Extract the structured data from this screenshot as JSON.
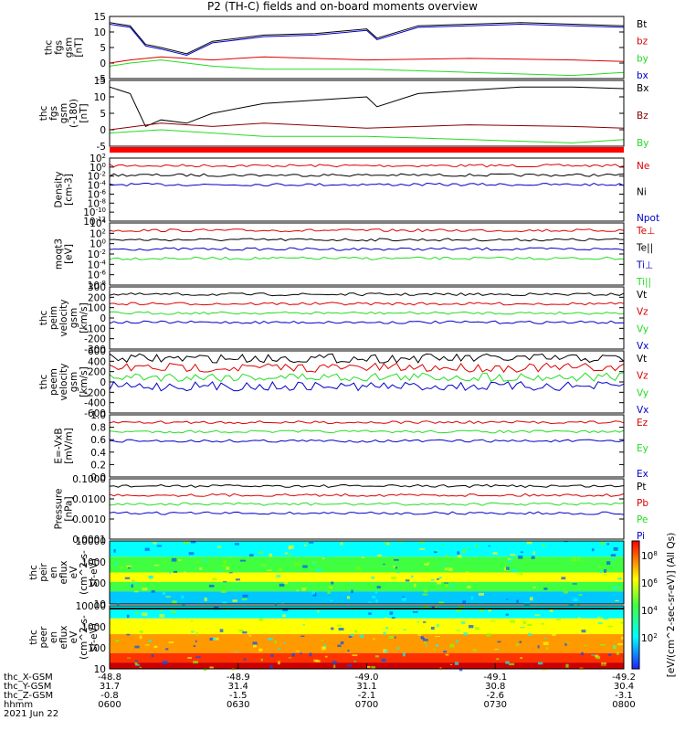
{
  "title": "P2 (TH-C) fields and on-board moments overview",
  "colorbar_label": "[eV/(cm^2-sec-sr-eV)] (All Qs)",
  "colorbar_ticks": [
    "10^8",
    "10^6",
    "10^4",
    "10^2"
  ],
  "colors": {
    "black": "#000000",
    "red": "#dd0000",
    "green": "#22dd22",
    "blue": "#0000cc",
    "darkred": "#880000"
  },
  "chart_data": [
    {
      "type": "line",
      "panel": "fgs_gsm",
      "ylabel": [
        "thc",
        "fgs",
        "gsm",
        "[nT]"
      ],
      "ylim": [
        -5,
        15
      ],
      "ticks": [
        "15",
        "10",
        "5",
        "0",
        "-5"
      ],
      "series": [
        {
          "name": "Bt",
          "color": "#000000",
          "x": [
            0,
            0.04,
            0.07,
            0.1,
            0.15,
            0.2,
            0.3,
            0.4,
            0.5,
            0.52,
            0.6,
            0.7,
            0.8,
            0.9,
            1
          ],
          "values": [
            13,
            12,
            6,
            5,
            3,
            7,
            9,
            9.5,
            11,
            8,
            12,
            12.5,
            13,
            12.5,
            12
          ]
        },
        {
          "name": "bz",
          "color": "#dd0000",
          "x": [
            0,
            0.04,
            0.1,
            0.2,
            0.3,
            0.5,
            0.7,
            0.9,
            1
          ],
          "values": [
            0,
            1,
            2,
            1,
            2,
            1,
            1.5,
            1,
            0.5
          ]
        },
        {
          "name": "by",
          "color": "#22dd22",
          "x": [
            0,
            0.04,
            0.1,
            0.2,
            0.3,
            0.5,
            0.7,
            0.9,
            1
          ],
          "values": [
            -1,
            0,
            1,
            -1,
            -2,
            -2,
            -3,
            -4,
            -3
          ]
        },
        {
          "name": "bx",
          "color": "#0000cc",
          "x": [
            0,
            0.04,
            0.07,
            0.1,
            0.15,
            0.2,
            0.3,
            0.4,
            0.5,
            0.52,
            0.6,
            0.7,
            0.8,
            0.9,
            1
          ],
          "values": [
            12.5,
            11.5,
            5.5,
            4.5,
            2.5,
            6.5,
            8.5,
            9,
            10.5,
            7.5,
            11.5,
            12,
            12.5,
            12,
            11.5
          ]
        }
      ]
    },
    {
      "type": "line",
      "panel": "fgs_gsm_deg",
      "ylabel": [
        "thc",
        "fgs",
        "gsm",
        "(-180)",
        "[nT]"
      ],
      "ylim": [
        -5,
        15
      ],
      "ticks": [
        "15",
        "10",
        "5",
        "0",
        "-5"
      ],
      "series": [
        {
          "name": "Bx",
          "color": "#000000",
          "x": [
            0,
            0.04,
            0.07,
            0.1,
            0.15,
            0.2,
            0.3,
            0.4,
            0.5,
            0.52,
            0.6,
            0.7,
            0.8,
            0.9,
            1
          ],
          "values": [
            13,
            11,
            1,
            3,
            2,
            5,
            8,
            9,
            10,
            7,
            11,
            12,
            13,
            13,
            12.5
          ]
        },
        {
          "name": "Bz",
          "color": "#880000",
          "x": [
            0,
            0.1,
            0.2,
            0.3,
            0.5,
            0.7,
            0.9,
            1
          ],
          "values": [
            0,
            2,
            1,
            2,
            0.5,
            1.5,
            1,
            0.5
          ]
        },
        {
          "name": "By",
          "color": "#22dd22",
          "x": [
            0,
            0.1,
            0.2,
            0.3,
            0.5,
            0.7,
            0.9,
            1
          ],
          "values": [
            -1,
            0,
            -1,
            -2,
            -2,
            -3,
            -4,
            -3
          ]
        }
      ]
    },
    {
      "type": "line",
      "panel": "density",
      "ylabel": [
        "Density",
        "[cm-3]"
      ],
      "ylim": [
        -12,
        2
      ],
      "scale": "log",
      "ticks": [
        "10^2",
        "10^0",
        "10^-2",
        "10^-4",
        "10^-6",
        "10^-8",
        "10^-10",
        "10^-12"
      ],
      "series": [
        {
          "name": "Ne",
          "color": "#dd0000"
        },
        {
          "name": "Ni",
          "color": "#000000"
        },
        {
          "name": "Npot",
          "color": "#0000cc"
        }
      ]
    },
    {
      "type": "line",
      "panel": "temperature",
      "ylabel": [
        "moqt3",
        "[eV]"
      ],
      "ylim": [
        -8,
        4
      ],
      "scale": "log",
      "ticks": [
        "10^4",
        "10^2",
        "10^0",
        "10^-2",
        "10^-4",
        "10^-6",
        "10^-8"
      ],
      "series": [
        {
          "name": "Te⊥",
          "color": "#dd0000"
        },
        {
          "name": "Te||",
          "color": "#000000"
        },
        {
          "name": "Ti⊥",
          "color": "#0000cc"
        },
        {
          "name": "Ti||",
          "color": "#22dd22"
        }
      ]
    },
    {
      "type": "line",
      "panel": "peim_velocity",
      "ylabel": [
        "thc",
        "peim",
        "velocity",
        "gsm",
        "[km/s]"
      ],
      "ylim": [
        -300,
        300
      ],
      "ticks": [
        "300",
        "200",
        "100",
        "0",
        "-100",
        "-200",
        "-300"
      ],
      "series": [
        {
          "name": "Vt",
          "color": "#000000"
        },
        {
          "name": "Vz",
          "color": "#dd0000"
        },
        {
          "name": "Vy",
          "color": "#22dd22"
        },
        {
          "name": "Vx",
          "color": "#0000cc"
        }
      ]
    },
    {
      "type": "line",
      "panel": "peem_velocity",
      "ylabel": [
        "thc",
        "peem",
        "velocity",
        "gsm",
        "[km/s]"
      ],
      "ylim": [
        -600,
        600
      ],
      "ticks": [
        "600",
        "400",
        "200",
        "0",
        "-200",
        "-400",
        "-600"
      ],
      "series": [
        {
          "name": "Vt",
          "color": "#000000"
        },
        {
          "name": "Vz",
          "color": "#dd0000"
        },
        {
          "name": "Vy",
          "color": "#22dd22"
        },
        {
          "name": "Vx",
          "color": "#0000cc"
        }
      ]
    },
    {
      "type": "line",
      "panel": "efield",
      "ylabel": [
        "E=-VxB",
        "[mV/m]"
      ],
      "ylim": [
        0,
        1
      ],
      "ticks": [
        "1.0",
        "0.8",
        "0.6",
        "0.4",
        "0.2",
        "0.0"
      ],
      "series": [
        {
          "name": "Ez",
          "color": "#dd0000"
        },
        {
          "name": "Ey",
          "color": "#22dd22"
        },
        {
          "name": "Ex",
          "color": "#0000cc"
        }
      ]
    },
    {
      "type": "line",
      "panel": "pressure",
      "ylabel": [
        "Pressure",
        "[nPa]"
      ],
      "ylim": [
        -4,
        -1
      ],
      "scale": "log",
      "ticks": [
        "0.1000",
        "0.0100",
        "0.0010",
        "0.0001"
      ],
      "series": [
        {
          "name": "Pt",
          "color": "#000000"
        },
        {
          "name": "Pb",
          "color": "#dd0000"
        },
        {
          "name": "Pe",
          "color": "#22dd22"
        },
        {
          "name": "Pi",
          "color": "#0000cc"
        }
      ]
    },
    {
      "type": "heatmap",
      "panel": "peir_en_eflux",
      "ylabel": [
        "thc",
        "peir",
        "en",
        "eflux",
        "eV",
        "(cm^2-s-",
        "sr-eV)"
      ],
      "scale": "log",
      "ticks": [
        "10000",
        "1000",
        "100",
        "10"
      ]
    },
    {
      "type": "heatmap",
      "panel": "peer_en_eflux",
      "ylabel": [
        "thc",
        "peer",
        "en",
        "eflux",
        "eV",
        "(cm^2-s-",
        "sr-eV)"
      ],
      "scale": "log",
      "ticks": [
        "10000",
        "1000",
        "100",
        "10"
      ]
    }
  ],
  "xaxis": {
    "rows": [
      {
        "label": "thc_X-GSM",
        "values": [
          "-48.8",
          "-48.9",
          "-49.0",
          "-49.1",
          "-49.2"
        ]
      },
      {
        "label": "thc_Y-GSM",
        "values": [
          "31.7",
          "31.4",
          "31.1",
          "30.8",
          "30.4"
        ]
      },
      {
        "label": "thc_Z-GSM",
        "values": [
          "-0.8",
          "-1.5",
          "-2.1",
          "-2.6",
          "-3.1"
        ]
      },
      {
        "label": "hhmm",
        "values": [
          "0600",
          "0630",
          "0700",
          "0730",
          "0800"
        ]
      }
    ],
    "date": "2021 Jun 22"
  }
}
